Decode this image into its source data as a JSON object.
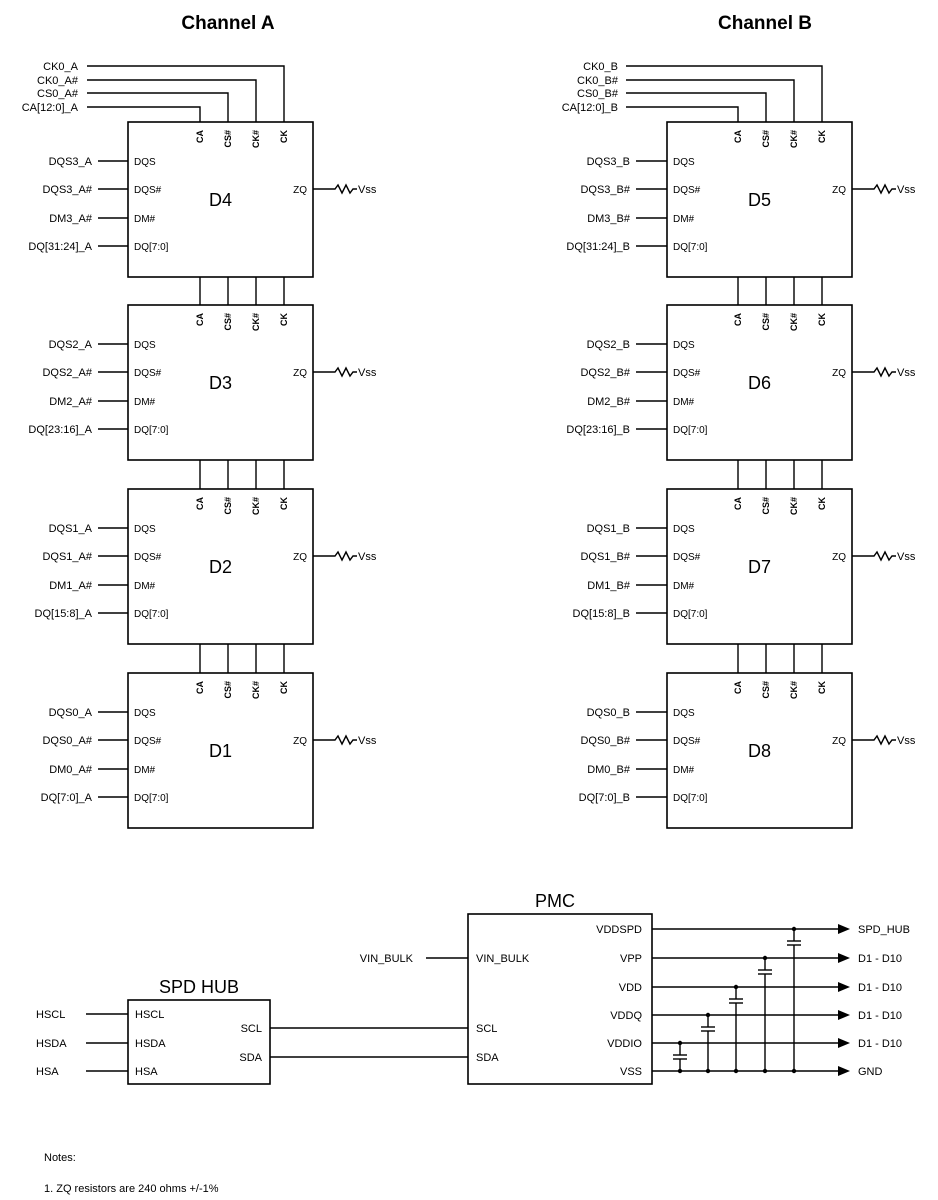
{
  "channels": [
    {
      "title": "Channel A",
      "top_signals": [
        "CK0_A",
        "CK0_A#",
        "CS0_A#",
        "CA[12:0]_A"
      ],
      "chips": [
        {
          "name": "D4",
          "signals": [
            "DQS3_A",
            "DQS3_A#",
            "DM3_A#",
            "DQ[31:24]_A"
          ]
        },
        {
          "name": "D3",
          "signals": [
            "DQS2_A",
            "DQS2_A#",
            "DM2_A#",
            "DQ[23:16]_A"
          ]
        },
        {
          "name": "D2",
          "signals": [
            "DQS1_A",
            "DQS1_A#",
            "DM1_A#",
            "DQ[15:8]_A"
          ]
        },
        {
          "name": "D1",
          "signals": [
            "DQS0_A",
            "DQS0_A#",
            "DM0_A#",
            "DQ[7:0]_A"
          ]
        }
      ]
    },
    {
      "title": "Channel B",
      "top_signals": [
        "CK0_B",
        "CK0_B#",
        "CS0_B#",
        "CA[12:0]_B"
      ],
      "chips": [
        {
          "name": "D5",
          "signals": [
            "DQS3_B",
            "DQS3_B#",
            "DM3_B#",
            "DQ[31:24]_B"
          ]
        },
        {
          "name": "D6",
          "signals": [
            "DQS2_B",
            "DQS2_B#",
            "DM2_B#",
            "DQ[23:16]_B"
          ]
        },
        {
          "name": "D7",
          "signals": [
            "DQS1_B",
            "DQS1_B#",
            "DM1_B#",
            "DQ[15:8]_B"
          ]
        },
        {
          "name": "D8",
          "signals": [
            "DQS0_B",
            "DQS0_B#",
            "DM0_B#",
            "DQ[7:0]_B"
          ]
        }
      ]
    }
  ],
  "dram_pins": {
    "left": [
      "DQS",
      "DQS#",
      "DM#",
      "DQ[7:0]"
    ],
    "top": [
      "CA",
      "CS#",
      "CK#",
      "CK"
    ],
    "right": "ZQ",
    "zq_termination": "Vss"
  },
  "spd_hub": {
    "title": "SPD HUB",
    "inputs": [
      "HSCL",
      "HSDA",
      "HSA"
    ],
    "input_signals": [
      "HSCL",
      "HSDA",
      "HSA"
    ],
    "outputs": [
      "SCL",
      "SDA"
    ]
  },
  "pmc": {
    "title": "PMC",
    "input_signal": "VIN_BULK",
    "left_pins": [
      "VIN_BULK",
      "SCL",
      "SDA"
    ],
    "rails": [
      {
        "pin": "VDDSPD",
        "dest": "SPD_HUB"
      },
      {
        "pin": "VPP",
        "dest": "D1 - D10"
      },
      {
        "pin": "VDD",
        "dest": "D1 - D10"
      },
      {
        "pin": "VDDQ",
        "dest": "D1 - D10"
      },
      {
        "pin": "VDDIO",
        "dest": "D1 - D10"
      },
      {
        "pin": "VSS",
        "dest": "GND"
      }
    ]
  },
  "notes": {
    "heading": "Notes:",
    "items": [
      "1. ZQ resistors are 240 ohms +/-1%"
    ]
  }
}
